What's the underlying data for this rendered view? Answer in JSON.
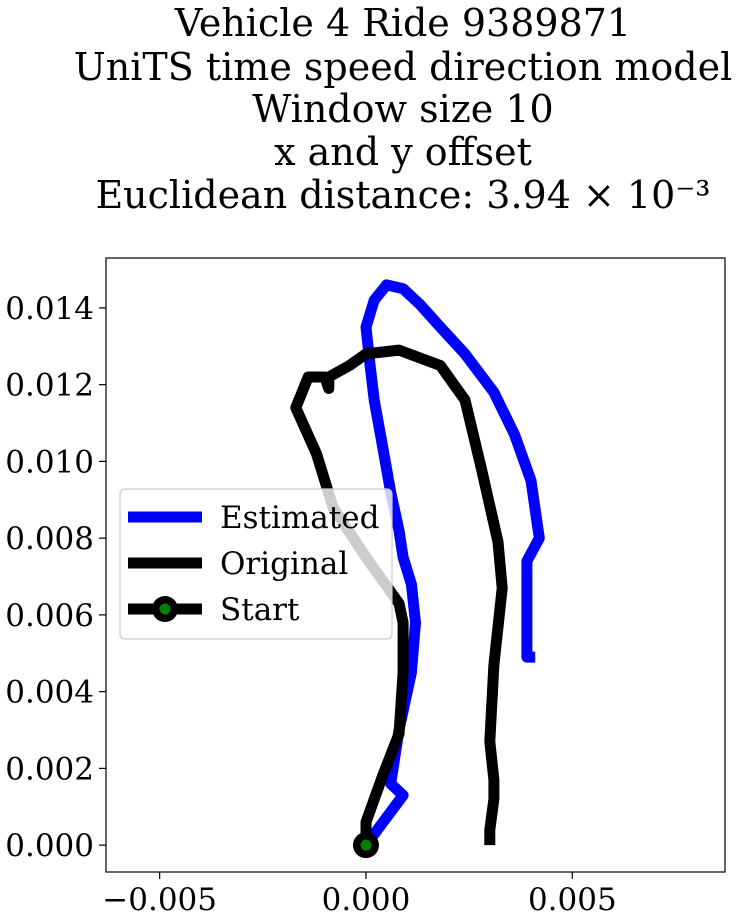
{
  "chart_data": {
    "type": "line",
    "title_lines": [
      "Vehicle 4 Ride 9389871",
      "UniTS time speed direction model",
      "Window size 10",
      "x and y offset",
      "Euclidean distance: 3.94 × 10⁻³"
    ],
    "xlabel": "",
    "ylabel": "",
    "xlim": [
      -0.0063,
      0.0087
    ],
    "ylim": [
      -0.0007,
      0.0153
    ],
    "x_ticks": [
      -0.005,
      0.0,
      0.005
    ],
    "x_tick_labels": [
      "−0.005",
      "0.000",
      "0.005"
    ],
    "y_ticks": [
      0.0,
      0.002,
      0.004,
      0.006,
      0.008,
      0.01,
      0.012,
      0.014
    ],
    "y_tick_labels": [
      "0.000",
      "0.002",
      "0.004",
      "0.006",
      "0.008",
      "0.010",
      "0.012",
      "0.014"
    ],
    "grid": false,
    "legend_position": "center-left",
    "series": [
      {
        "name": "Estimated",
        "color": "#0000ff",
        "x": [
          0.0,
          0.0009,
          0.0006,
          0.0008,
          0.0011,
          0.0012,
          0.0011,
          0.0009,
          0.0008,
          0.0006,
          0.0004,
          0.0002,
          0.0001,
          0.0,
          0.0002,
          0.0005,
          0.0009,
          0.0013,
          0.0018,
          0.0024,
          0.0031,
          0.0036,
          0.004,
          0.0042,
          0.0039,
          0.0039,
          0.0039,
          0.0041
        ],
        "y": [
          0.0,
          0.0013,
          0.0016,
          0.003,
          0.0045,
          0.0058,
          0.0068,
          0.0075,
          0.0082,
          0.0092,
          0.0104,
          0.0116,
          0.0125,
          0.0135,
          0.0142,
          0.0146,
          0.0145,
          0.0141,
          0.0135,
          0.0128,
          0.0118,
          0.0107,
          0.0095,
          0.008,
          0.0074,
          0.0065,
          0.0049,
          0.0049
        ]
      },
      {
        "name": "Original",
        "color": "#000000",
        "x": [
          0.0,
          0.0,
          0.0004,
          0.0008,
          0.0009,
          0.0009,
          0.0008,
          0.0,
          -0.0008,
          -0.0012,
          -0.0017,
          -0.0014,
          -0.001,
          -0.0009,
          -0.0009,
          -0.0004,
          0.0,
          0.0008,
          0.0018,
          0.0024,
          0.0028,
          0.0032,
          0.0033,
          0.0031,
          0.003,
          0.0031,
          0.0031,
          0.003,
          0.003
        ],
        "y": [
          0.0,
          0.0006,
          0.0018,
          0.0029,
          0.0045,
          0.0058,
          0.0063,
          0.0075,
          0.0088,
          0.0102,
          0.0114,
          0.0122,
          0.0122,
          0.0119,
          0.0122,
          0.0125,
          0.0128,
          0.0129,
          0.0125,
          0.0116,
          0.0098,
          0.0079,
          0.0067,
          0.0047,
          0.0027,
          0.0017,
          0.0012,
          0.0004,
          0.0
        ]
      }
    ],
    "start_point": {
      "name": "Start",
      "x": 0.0,
      "y": 0.0,
      "edge_color": "#000000",
      "fill_color": "#008000"
    },
    "legend": {
      "entries": [
        "Estimated",
        "Original",
        "Start"
      ]
    }
  }
}
